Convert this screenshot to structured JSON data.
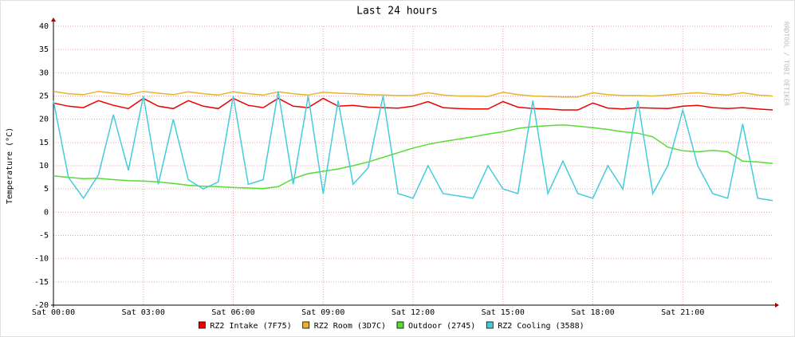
{
  "chart_data": {
    "type": "line",
    "title": "Last 24 hours",
    "y_label": "Temperature (°C)",
    "watermark": "RRDTOOL / TOBI OETIKER",
    "x": [
      0,
      0.5,
      1,
      1.5,
      2,
      2.5,
      3,
      3.5,
      4,
      4.5,
      5,
      5.5,
      6,
      6.5,
      7,
      7.5,
      8,
      8.5,
      9,
      9.5,
      10,
      10.5,
      11,
      11.5,
      12,
      12.5,
      13,
      13.5,
      14,
      14.5,
      15,
      15.5,
      16,
      16.5,
      17,
      17.5,
      18,
      18.5,
      19,
      19.5,
      20,
      20.5,
      21,
      21.5,
      22,
      22.5,
      23,
      23.5,
      24
    ],
    "xlim": [
      0,
      24
    ],
    "xticks": [
      {
        "value": 0,
        "label": "Sat 00:00"
      },
      {
        "value": 3,
        "label": "Sat 03:00"
      },
      {
        "value": 6,
        "label": "Sat 06:00"
      },
      {
        "value": 9,
        "label": "Sat 09:00"
      },
      {
        "value": 12,
        "label": "Sat 12:00"
      },
      {
        "value": 15,
        "label": "Sat 15:00"
      },
      {
        "value": 18,
        "label": "Sat 18:00"
      },
      {
        "value": 21,
        "label": "Sat 21:00"
      }
    ],
    "ylim": [
      -20,
      40
    ],
    "yticks": [
      -20,
      -15,
      -10,
      -5,
      0,
      5,
      10,
      15,
      20,
      25,
      30,
      35,
      40
    ],
    "grid": true,
    "legend": "bottom",
    "series": [
      {
        "name": "RZ2 Intake (7F75)",
        "color": "#ee0000",
        "values": [
          23.5,
          22.8,
          22.5,
          24,
          23,
          22.3,
          24.5,
          22.8,
          22.3,
          24,
          22.8,
          22.3,
          24.5,
          23,
          22.5,
          24.5,
          22.8,
          22.5,
          24.5,
          22.8,
          23,
          22.6,
          22.5,
          22.4,
          22.8,
          23.8,
          22.5,
          22.3,
          22.2,
          22.2,
          23.8,
          22.6,
          22.3,
          22.2,
          22,
          22,
          23.5,
          22.4,
          22.2,
          22.5,
          22.4,
          22.3,
          22.8,
          23,
          22.5,
          22.3,
          22.5,
          22.2,
          22
        ]
      },
      {
        "name": "RZ2 Room (3D7C)",
        "color": "#e8b42a",
        "values": [
          26,
          25.5,
          25.3,
          26,
          25.6,
          25.3,
          26,
          25.6,
          25.3,
          25.9,
          25.5,
          25.2,
          25.9,
          25.5,
          25.2,
          25.9,
          25.5,
          25.2,
          25.8,
          25.6,
          25.5,
          25.3,
          25.2,
          25.1,
          25.1,
          25.7,
          25.2,
          25,
          25,
          24.9,
          25.8,
          25.3,
          25,
          24.9,
          24.8,
          24.8,
          25.7,
          25.3,
          25.1,
          25.1,
          25,
          25.2,
          25.5,
          25.7,
          25.4,
          25.2,
          25.7,
          25.2,
          25
        ]
      },
      {
        "name": "Outdoor (2745)",
        "color": "#55dd33",
        "values": [
          7.8,
          7.5,
          7.2,
          7.3,
          7,
          6.8,
          6.7,
          6.5,
          6.2,
          5.8,
          5.6,
          5.5,
          5.3,
          5.2,
          5.1,
          5.5,
          7.2,
          8.3,
          8.8,
          9.3,
          10,
          10.8,
          11.8,
          12.8,
          13.8,
          14.6,
          15.2,
          15.7,
          16.2,
          16.8,
          17.3,
          18,
          18.4,
          18.6,
          18.8,
          18.5,
          18.2,
          17.8,
          17.3,
          17,
          16.2,
          14,
          13.2,
          13,
          13.3,
          13,
          11,
          10.8,
          10.5
        ]
      },
      {
        "name": "RZ2 Cooling (3588)",
        "color": "#44ccdd",
        "values": [
          24,
          7.5,
          3,
          8,
          21,
          9,
          25,
          6,
          20,
          7,
          5,
          6.5,
          25,
          6,
          7,
          26,
          6,
          25,
          4,
          24,
          6,
          9.5,
          25,
          4,
          3,
          10,
          4,
          3.5,
          3,
          10,
          5,
          4,
          24,
          4,
          11,
          4,
          3,
          10,
          5,
          24,
          4,
          10,
          22,
          10,
          4,
          3,
          19,
          3,
          2.5
        ]
      }
    ]
  }
}
